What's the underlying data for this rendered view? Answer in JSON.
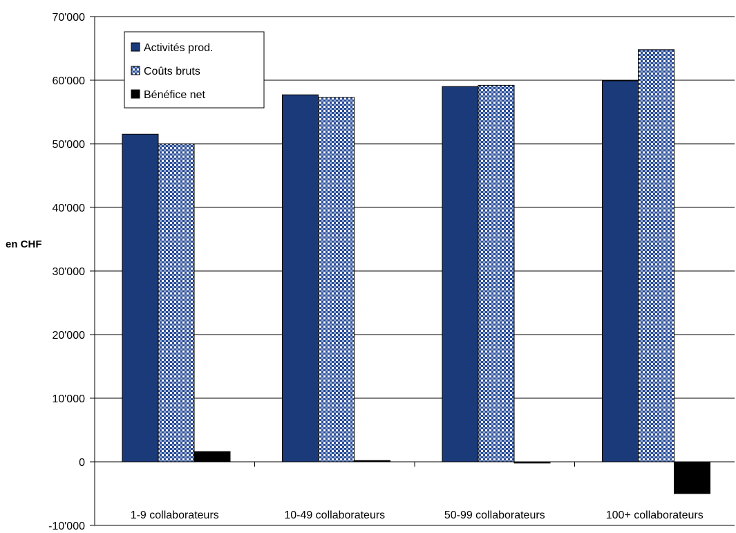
{
  "chart_data": {
    "type": "bar",
    "title": "",
    "xlabel": "",
    "ylabel": "en CHF",
    "ylim": [
      -10000,
      70000
    ],
    "ytick_step": 10000,
    "yticks": [
      "-10'000",
      "0",
      "10'000",
      "20'000",
      "30'000",
      "40'000",
      "50'000",
      "60'000",
      "70'000"
    ],
    "categories": [
      "1-9 collaborateurs",
      "10-49 collaborateurs",
      "50-99 collaborateurs",
      "100+ collaborateurs"
    ],
    "series": [
      {
        "name": "Activités prod.",
        "values": [
          51500,
          57700,
          59000,
          59900
        ],
        "color": "#1a3a7a",
        "pattern": "solid"
      },
      {
        "name": "Coûts bruts",
        "values": [
          50000,
          57300,
          59200,
          64800
        ],
        "color": "#1a3a7a",
        "pattern": "checker"
      },
      {
        "name": "Bénéfice net",
        "values": [
          1600,
          200,
          -200,
          -5000
        ],
        "color": "#000000",
        "pattern": "solid"
      }
    ],
    "grid": true,
    "legend_position": "top-left"
  }
}
